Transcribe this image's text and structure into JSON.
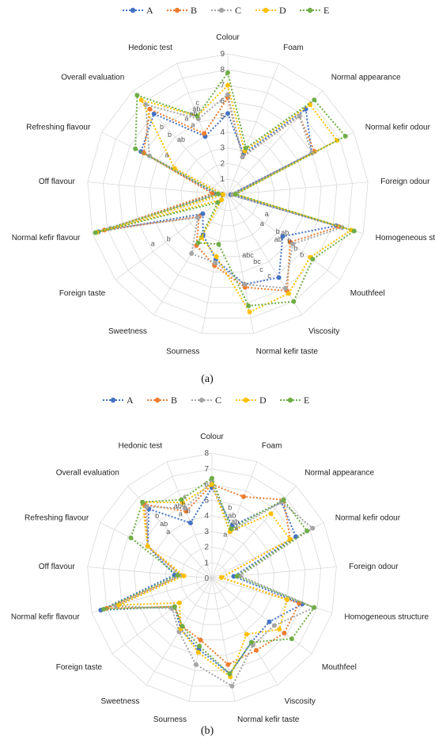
{
  "chart_data": [
    {
      "type": "radar",
      "panel_label": "(a)",
      "axes": [
        "Colour",
        "Foam",
        "Normal appearance",
        "Normal kefir odour",
        "Foreign odour",
        "Homogeneous structure",
        "Mouthfeel",
        "Viscosity",
        "Normal kefir taste",
        "Sourness",
        "Sweetness",
        "Foreign taste",
        "Normal kefir flavour",
        "Off flavour",
        "Refreshing flavour",
        "Overall evaluation",
        "Hedonic test"
      ],
      "rlim": [
        0,
        9
      ],
      "ticks": [
        "0",
        "1",
        "2",
        "3",
        "4",
        "5",
        "6",
        "7",
        "8",
        "9"
      ],
      "grid": true,
      "legend_position": "top",
      "series": [
        {
          "name": "A",
          "color": "#4472c4",
          "values": [
            5.2,
            2.8,
            7.4,
            6.0,
            0.2,
            7.2,
            4.4,
            6.2,
            5.8,
            4.2,
            3.0,
            2.0,
            8.6,
            0.8,
            6.2,
            7.0,
            4.0
          ]
        },
        {
          "name": "B",
          "color": "#ed7d31",
          "values": [
            6.2,
            2.6,
            6.8,
            6.2,
            0.3,
            7.4,
            5.0,
            7.2,
            6.0,
            4.6,
            3.8,
            2.3,
            8.2,
            1.0,
            6.0,
            7.4,
            4.2
          ]
        },
        {
          "name": "C",
          "color": "#a5a5a5",
          "values": [
            6.4,
            2.6,
            6.8,
            6.0,
            0.3,
            7.6,
            5.2,
            7.0,
            5.8,
            4.4,
            4.4,
            2.4,
            7.8,
            0.6,
            5.6,
            7.8,
            5.2
          ]
        },
        {
          "name": "D",
          "color": "#ffc000",
          "values": [
            7.0,
            3.0,
            7.8,
            7.8,
            0.5,
            8.2,
            6.6,
            7.4,
            7.6,
            4.0,
            3.2,
            0.5,
            8.7,
            0.3,
            3.8,
            8.2,
            5.4
          ]
        },
        {
          "name": "E",
          "color": "#70ad47",
          "values": [
            7.8,
            3.2,
            8.2,
            8.4,
            0.5,
            8.4,
            6.8,
            8.0,
            7.2,
            3.2,
            3.6,
            0.8,
            8.8,
            0.6,
            6.6,
            8.6,
            5.4
          ]
        }
      ],
      "annotations": [
        {
          "axis": "Hedonic test",
          "labels": [
            "c",
            "ab",
            "ab",
            "a",
            "a"
          ]
        },
        {
          "axis": "Overall evaluation",
          "labels": [
            "b",
            "b",
            "ab"
          ]
        },
        {
          "axis": "Refreshing flavour",
          "labels": [
            "a"
          ]
        },
        {
          "axis": "Foreign taste",
          "labels": [
            "a",
            "b"
          ]
        },
        {
          "axis": "Homogeneous structure",
          "labels": [
            "a",
            "a",
            "b",
            "ab"
          ]
        },
        {
          "axis": "Mouthfeel",
          "labels": [
            "ab",
            "b",
            "b",
            "b"
          ]
        },
        {
          "axis": "Viscosity",
          "labels": [
            "abc",
            "bc",
            "c",
            "c"
          ]
        }
      ]
    },
    {
      "type": "radar",
      "panel_label": "(b)",
      "axes": [
        "Colour",
        "Foam",
        "Normal appearance",
        "Normal kefir odour",
        "Foreign odour",
        "Homogeneous structure",
        "Mouthfeel",
        "Viscosity",
        "Normal kefir taste",
        "Sourness",
        "Sweetness",
        "Foreign taste",
        "Normal kefir flavour",
        "Off flavour",
        "Refreshing flavour",
        "Overall evaluation",
        "Hedonic test"
      ],
      "rlim": [
        0,
        8
      ],
      "ticks": [
        "0",
        "1",
        "2",
        "3",
        "4",
        "5",
        "6",
        "7",
        "8"
      ],
      "grid": true,
      "legend_position": "top",
      "series": [
        {
          "name": "A",
          "color": "#4472c4",
          "values": [
            5.8,
            3.6,
            6.6,
            6.0,
            1.4,
            6.0,
            4.6,
            4.8,
            6.2,
            4.6,
            3.8,
            3.0,
            7.4,
            2.4,
            4.6,
            6.0,
            3.8
          ]
        },
        {
          "name": "B",
          "color": "#ed7d31",
          "values": [
            6.0,
            5.6,
            6.8,
            5.6,
            0.6,
            5.8,
            5.8,
            5.4,
            5.6,
            4.0,
            3.6,
            3.0,
            7.0,
            2.0,
            4.6,
            6.4,
            4.6
          ]
        },
        {
          "name": "C",
          "color": "#a5a5a5",
          "values": [
            6.2,
            3.2,
            6.6,
            7.2,
            1.8,
            6.8,
            5.0,
            5.0,
            7.0,
            5.6,
            4.0,
            3.2,
            6.4,
            2.0,
            4.6,
            6.2,
            4.8
          ]
        },
        {
          "name": "D",
          "color": "#ffc000",
          "values": [
            6.0,
            3.2,
            5.6,
            5.6,
            0.6,
            5.0,
            5.4,
            4.2,
            6.4,
            4.8,
            3.8,
            2.6,
            6.2,
            1.8,
            4.6,
            6.6,
            5.2
          ]
        },
        {
          "name": "E",
          "color": "#70ad47",
          "values": [
            6.4,
            3.4,
            6.8,
            6.8,
            1.6,
            6.8,
            6.4,
            4.8,
            6.2,
            4.4,
            3.6,
            3.0,
            7.2,
            2.2,
            5.8,
            6.6,
            5.4
          ]
        }
      ],
      "annotations": [
        {
          "axis": "Hedonic test",
          "labels": [
            "c",
            "b",
            "b",
            "ab",
            "a"
          ]
        },
        {
          "axis": "Overall evaluation",
          "labels": [
            "b",
            "ab",
            "a"
          ]
        },
        {
          "axis": "Foam",
          "labels": [
            "b",
            "ab",
            "ab",
            "a",
            "a"
          ]
        }
      ]
    }
  ]
}
